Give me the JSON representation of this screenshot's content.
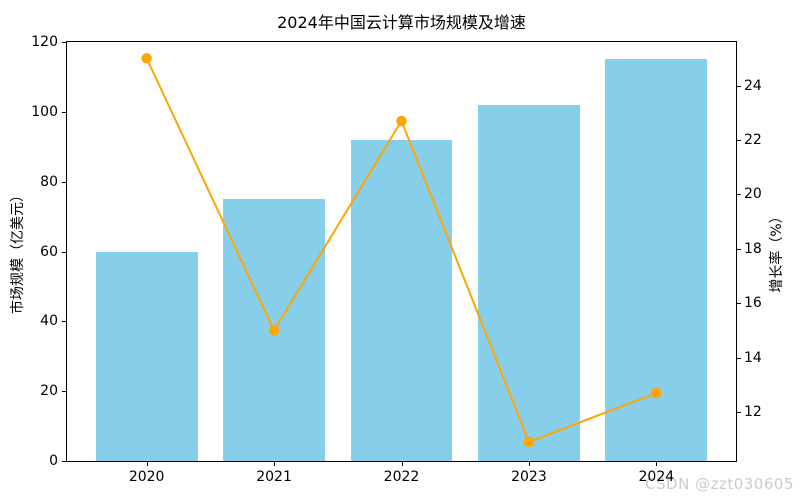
{
  "chart_data": {
    "type": "bar+line",
    "title": "2024年中国云计算市场规模及增速",
    "categories": [
      "2020",
      "2021",
      "2022",
      "2023",
      "2024"
    ],
    "series": [
      {
        "name": "市场规模",
        "chart": "bar",
        "axis": "left",
        "color": "#87CEEB",
        "values": [
          60,
          75,
          92,
          102,
          115
        ]
      },
      {
        "name": "增长率",
        "chart": "line",
        "axis": "right",
        "color": "#FFA500",
        "marker": "circle",
        "line_width": 2,
        "values": [
          25,
          15,
          22.7,
          10.9,
          12.7
        ]
      }
    ],
    "left_axis": {
      "label": "市场规模（亿美元）",
      "ticks": [
        0,
        20,
        40,
        60,
        80,
        100,
        120
      ],
      "ylim": [
        0,
        120
      ]
    },
    "right_axis": {
      "label": "增长率（%）",
      "ticks": [
        12,
        14,
        16,
        18,
        20,
        22,
        24
      ],
      "ylim": [
        10.2,
        25.6
      ]
    },
    "layout": {
      "xlim": [
        -0.625,
        4.625
      ],
      "bar_width": 0.8,
      "grid": false,
      "legend": "none"
    },
    "watermark": {
      "text": "CSDN @zzt030605",
      "color": "#cbcbcb"
    }
  }
}
